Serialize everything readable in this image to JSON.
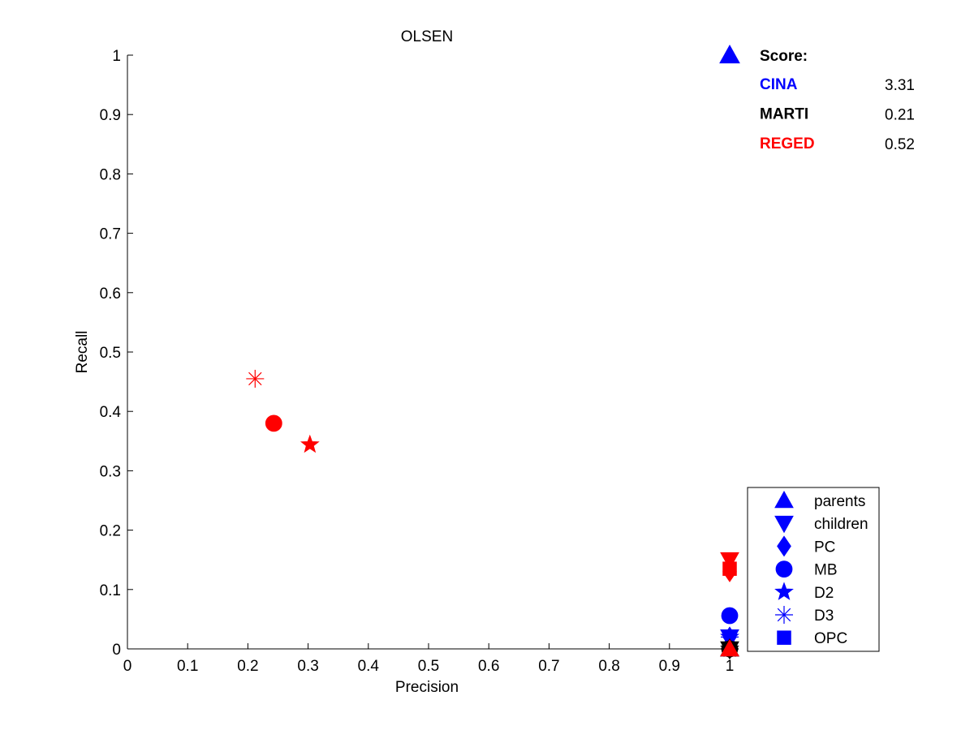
{
  "chart_data": {
    "type": "scatter",
    "title": "OLSEN",
    "xlabel": "Precision",
    "ylabel": "Recall",
    "xlim": [
      0,
      1
    ],
    "ylim": [
      0,
      1
    ],
    "x_ticks": [
      "0",
      "0.1",
      "0.2",
      "0.3",
      "0.4",
      "0.5",
      "0.6",
      "0.7",
      "0.8",
      "0.9",
      "1"
    ],
    "y_ticks": [
      "0",
      "0.1",
      "0.2",
      "0.3",
      "0.4",
      "0.5",
      "0.6",
      "0.7",
      "0.8",
      "0.9",
      "1"
    ],
    "grid": false,
    "legend_placement": "bottom-right",
    "legend": [
      {
        "label": "parents",
        "marker": "triangle-up"
      },
      {
        "label": "children",
        "marker": "triangle-down"
      },
      {
        "label": "PC",
        "marker": "diamond"
      },
      {
        "label": "MB",
        "marker": "circle"
      },
      {
        "label": "D2",
        "marker": "star"
      },
      {
        "label": "D3",
        "marker": "asterisk"
      },
      {
        "label": "OPC",
        "marker": "square"
      }
    ],
    "score_box": {
      "header": "Score:",
      "rows": [
        {
          "dataset": "CINA",
          "value": "3.31",
          "color": "#0000ff"
        },
        {
          "dataset": "MARTI",
          "value": "0.21",
          "color": "#000000"
        },
        {
          "dataset": "REGED",
          "value": "0.52",
          "color": "#ff0000"
        }
      ]
    },
    "datasets": [
      {
        "name": "CINA",
        "color": "#0000ff",
        "points": [
          {
            "type": "parents",
            "x": 1.0,
            "y": 0.0
          },
          {
            "type": "children",
            "x": 1.0,
            "y": 0.02
          },
          {
            "type": "PC",
            "x": 1.0,
            "y": 0.02
          },
          {
            "type": "MB",
            "x": 1.0,
            "y": 0.056
          },
          {
            "type": "D2",
            "x": 1.0,
            "y": 0.02
          },
          {
            "type": "D3",
            "x": 1.0,
            "y": 0.02
          },
          {
            "type": "OPC",
            "x": 1.0,
            "y": 0.0
          }
        ]
      },
      {
        "name": "MARTI",
        "color": "#000000",
        "points": [
          {
            "type": "parents",
            "x": 1.0,
            "y": 0.0
          },
          {
            "type": "children",
            "x": 1.0,
            "y": 0.0
          },
          {
            "type": "PC",
            "x": 1.0,
            "y": 0.0
          },
          {
            "type": "MB",
            "x": 1.0,
            "y": 0.0
          },
          {
            "type": "D2",
            "x": 1.0,
            "y": 0.0
          },
          {
            "type": "D3",
            "x": 1.0,
            "y": 0.0
          },
          {
            "type": "OPC",
            "x": 1.0,
            "y": 0.0
          }
        ]
      },
      {
        "name": "REGED",
        "color": "#ff0000",
        "points": [
          {
            "type": "parents",
            "x": 1.0,
            "y": 0.0
          },
          {
            "type": "children",
            "x": 1.0,
            "y": 0.15
          },
          {
            "type": "PC",
            "x": 1.0,
            "y": 0.13
          },
          {
            "type": "MB",
            "x": 0.243,
            "y": 0.38
          },
          {
            "type": "D2",
            "x": 0.303,
            "y": 0.344
          },
          {
            "type": "D3",
            "x": 0.212,
            "y": 0.455
          },
          {
            "type": "OPC",
            "x": 1.0,
            "y": 0.135
          }
        ]
      }
    ]
  }
}
